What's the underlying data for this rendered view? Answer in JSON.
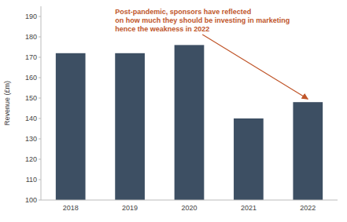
{
  "chart_data": {
    "type": "bar",
    "categories": [
      "2018",
      "2019",
      "2020",
      "2021",
      "2022"
    ],
    "values": [
      172,
      172,
      176,
      140,
      148
    ],
    "color": "#3d4f63",
    "ylabel": "Revenue (£m)",
    "ylim": [
      100,
      195
    ],
    "yticks": [
      100,
      110,
      120,
      130,
      140,
      150,
      160,
      170,
      180,
      190
    ],
    "grid": false,
    "annotations": [
      {
        "text": "Post-pandemic, sponsors have reflected",
        "color": "#c0562a"
      },
      {
        "text": "on how much they should be investing in marketing",
        "color": "#c0562a"
      },
      {
        "text": "hence the weakness in 2022",
        "color": "#c0562a"
      }
    ]
  }
}
